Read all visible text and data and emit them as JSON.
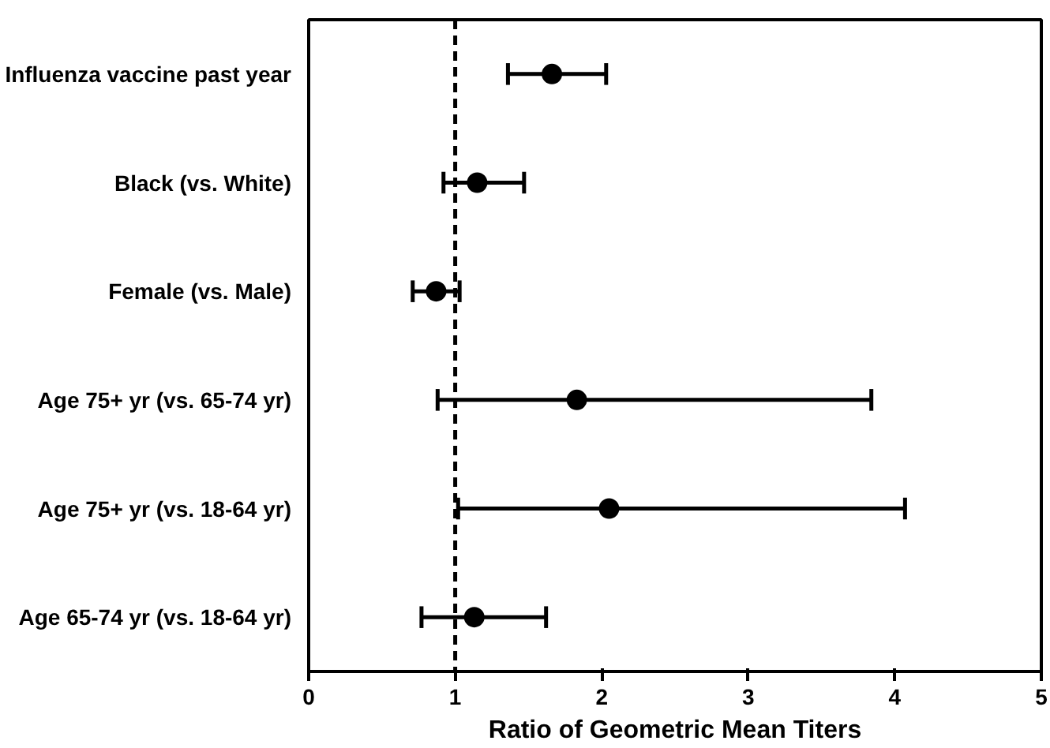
{
  "chart_data": {
    "type": "scatter",
    "orientation": "horizontal",
    "xlabel": "Ratio of Geometric Mean Titers",
    "categories": [
      "Influenza vaccine past year",
      "Black (vs. White)",
      "Female (vs. Male)",
      "Age 75+ yr (vs. 65-74 yr)",
      "Age 75+ yr (vs. 18-64 yr)",
      "Age 65-74 yr (vs. 18-64 yr)"
    ],
    "values": [
      1.66,
      1.15,
      0.87,
      1.83,
      2.05,
      1.13
    ],
    "errors": [
      [
        1.36,
        2.03
      ],
      [
        0.92,
        1.47
      ],
      [
        0.71,
        1.03
      ],
      [
        0.88,
        3.84
      ],
      [
        1.02,
        4.07
      ],
      [
        0.77,
        1.62
      ]
    ],
    "color": "#000000",
    "marker": "circle",
    "xlim": [
      0,
      5
    ],
    "xticks": [
      0,
      1,
      2,
      3,
      4,
      5
    ],
    "ref_lines": [
      {
        "axis": "x",
        "value": 1,
        "line_style": "dashed",
        "color": "#000000"
      }
    ],
    "grid": false
  }
}
